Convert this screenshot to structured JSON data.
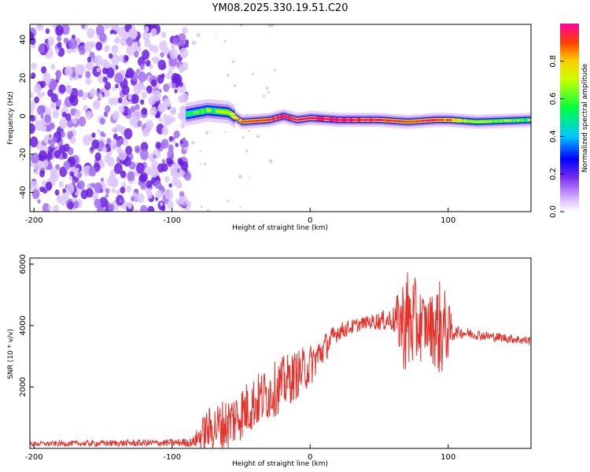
{
  "chart_data": [
    {
      "type": "heatmap",
      "title": "YM08.2025.330.19.51.C20",
      "xlabel": "Height of straight line (km)",
      "ylabel": "Frequency (Hz)",
      "xlim": [
        -203,
        160
      ],
      "ylim": [
        -50,
        48
      ],
      "xticks": [
        -200,
        -100,
        0,
        100
      ],
      "yticks": [
        -40,
        -20,
        0,
        20,
        40
      ],
      "colorbar": {
        "label": "Normalized spectral amplitude",
        "range": [
          0.0,
          1.0
        ],
        "ticks": [
          0.0,
          0.2,
          0.4,
          0.6,
          0.8
        ],
        "tick_labels": [
          "0.0",
          "0.2",
          "0.4",
          "0.6",
          "0.8"
        ]
      },
      "ridge": {
        "description": "dominant frequency trace",
        "points": [
          {
            "x": -90,
            "f": 1,
            "amp": 0.45
          },
          {
            "x": -75,
            "f": 3,
            "amp": 0.5
          },
          {
            "x": -60,
            "f": 2,
            "amp": 0.55
          },
          {
            "x": -50,
            "f": -3,
            "amp": 0.8
          },
          {
            "x": -30,
            "f": -2,
            "amp": 0.85
          },
          {
            "x": -20,
            "f": 0,
            "amp": 0.9
          },
          {
            "x": -10,
            "f": -2,
            "amp": 0.85
          },
          {
            "x": 0,
            "f": -1,
            "amp": 0.9
          },
          {
            "x": 20,
            "f": -2,
            "amp": 0.9
          },
          {
            "x": 50,
            "f": -2,
            "amp": 0.85
          },
          {
            "x": 70,
            "f": -3,
            "amp": 0.8
          },
          {
            "x": 90,
            "f": -2,
            "amp": 0.85
          },
          {
            "x": 100,
            "f": -2,
            "amp": 0.75
          },
          {
            "x": 120,
            "f": -3,
            "amp": 0.55
          },
          {
            "x": 160,
            "f": -2,
            "amp": 0.5
          }
        ]
      },
      "noise_region_x": [
        -203,
        -88
      ]
    },
    {
      "type": "line",
      "xlabel": "Height of straight line (km)",
      "ylabel": "SNR (10 * v/v)",
      "xlim": [
        -203,
        160
      ],
      "ylim": [
        0,
        6200
      ],
      "xticks": [
        -200,
        -100,
        0,
        100
      ],
      "yticks": [
        2000,
        4000,
        6000
      ],
      "series": [
        {
          "name": "SNR",
          "color": "#e8302a",
          "envelope": [
            {
              "x": -203,
              "mean": 150,
              "spread": 80
            },
            {
              "x": -100,
              "mean": 180,
              "spread": 120
            },
            {
              "x": -85,
              "mean": 200,
              "spread": 150
            },
            {
              "x": -75,
              "mean": 600,
              "spread": 700
            },
            {
              "x": -60,
              "mean": 800,
              "spread": 900
            },
            {
              "x": -40,
              "mean": 1500,
              "spread": 900
            },
            {
              "x": -20,
              "mean": 2100,
              "spread": 900
            },
            {
              "x": 0,
              "mean": 2700,
              "spread": 700
            },
            {
              "x": 20,
              "mean": 3800,
              "spread": 300
            },
            {
              "x": 40,
              "mean": 4100,
              "spread": 200
            },
            {
              "x": 60,
              "mean": 4200,
              "spread": 400
            },
            {
              "x": 70,
              "mean": 4100,
              "spread": 1900
            },
            {
              "x": 85,
              "mean": 4000,
              "spread": 900
            },
            {
              "x": 95,
              "mean": 3900,
              "spread": 1700
            },
            {
              "x": 105,
              "mean": 3800,
              "spread": 200
            },
            {
              "x": 130,
              "mean": 3650,
              "spread": 150
            },
            {
              "x": 160,
              "mean": 3500,
              "spread": 150
            }
          ]
        }
      ]
    }
  ],
  "colors": {
    "snr_line": "#e8302a",
    "noise_speckle": "#7a2df0",
    "axes": "#000000"
  }
}
